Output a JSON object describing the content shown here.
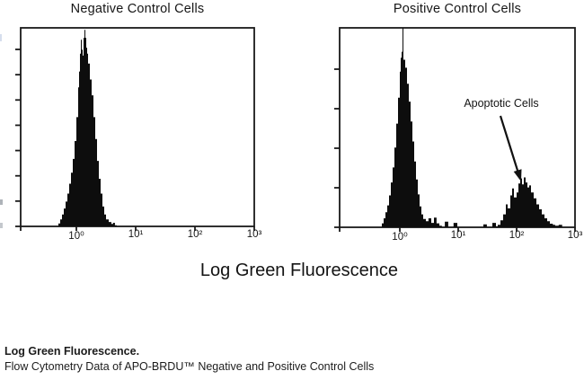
{
  "figure": {
    "x_axis_label": "Log Green Fluorescence"
  },
  "caption": {
    "bold_line": "Log Green Fluorescence.",
    "line2": "Flow Cytometry Data of APO-BRDU™ Negative and Positive Control Cells"
  },
  "colors": {
    "ink": "#1a1a1a",
    "histogram_fill": "#0d0d0d",
    "background": "#ffffff"
  },
  "chart_data": [
    {
      "type": "histogram",
      "title": "Negative Control Cells",
      "xlabel": "Log Green Fluorescence",
      "x_scale": "log10",
      "x_tick_labels": [
        "10⁰",
        "10¹",
        "10²",
        "10³"
      ],
      "x_tick_values": [
        1,
        10,
        100,
        1000
      ],
      "x_tick_decades": [
        0,
        1,
        2,
        3
      ],
      "x_range_decades": [
        -0.94,
        3
      ],
      "ylabel": "",
      "y_tick_count": 8,
      "grid": false,
      "legend": false,
      "description": "Single tall peak centered near 1.3 (10^0.14) reaching ~full scale; no events above 10^1",
      "series": [
        {
          "name": "Negative control cells",
          "points": [
            [
              -0.333,
              0
            ],
            [
              -0.303,
              0.015
            ],
            [
              -0.273,
              0.035
            ],
            [
              -0.242,
              0.06
            ],
            [
              -0.212,
              0.09
            ],
            [
              -0.182,
              0.125
            ],
            [
              -0.152,
              0.165
            ],
            [
              -0.121,
              0.215
            ],
            [
              -0.091,
              0.27
            ],
            [
              -0.061,
              0.34
            ],
            [
              -0.03,
              0.43
            ],
            [
              0,
              0.55
            ],
            [
              0.03,
              0.7
            ],
            [
              0.045,
              0.78
            ],
            [
              0.061,
              0.87
            ],
            [
              0.076,
              0.94
            ],
            [
              0.091,
              0.89
            ],
            [
              0.106,
              0.86
            ],
            [
              0.121,
              0.95
            ],
            [
              0.136,
              0.99
            ],
            [
              0.152,
              0.95
            ],
            [
              0.167,
              0.9
            ],
            [
              0.182,
              0.87
            ],
            [
              0.197,
              0.82
            ],
            [
              0.227,
              0.74
            ],
            [
              0.258,
              0.66
            ],
            [
              0.288,
              0.55
            ],
            [
              0.318,
              0.44
            ],
            [
              0.348,
              0.33
            ],
            [
              0.379,
              0.24
            ],
            [
              0.409,
              0.165
            ],
            [
              0.439,
              0.1
            ],
            [
              0.47,
              0.06
            ],
            [
              0.5,
              0.035
            ],
            [
              0.545,
              0.022
            ],
            [
              0.59,
              0.012
            ],
            [
              0.62,
              0.018
            ],
            [
              0.65,
              0.006
            ],
            [
              0.68,
              0
            ]
          ]
        }
      ]
    },
    {
      "type": "histogram",
      "title": "Positive Control Cells",
      "xlabel": "Log Green Fluorescence",
      "x_scale": "log10",
      "x_tick_labels": [
        "10⁰",
        "10¹",
        "10²",
        "10³"
      ],
      "x_tick_values": [
        1,
        10,
        100,
        1000
      ],
      "x_tick_decades": [
        0,
        1,
        2,
        3
      ],
      "x_range_decades": [
        -1.03,
        3
      ],
      "ylabel": "",
      "y_tick_count": 5,
      "grid": false,
      "legend": false,
      "annotation": {
        "text": "Apoptotic Cells",
        "points_to_log_x": 2.1,
        "points_to_height_frac": 0.25
      },
      "description": "Main peak at ~10^0 reaching full scale plus smaller apoptotic-cell peak centered near 10^2.1 at ~25% height",
      "series": [
        {
          "name": "Positive control cells",
          "points": [
            [
              -0.338,
              0
            ],
            [
              -0.308,
              0.02
            ],
            [
              -0.277,
              0.045
            ],
            [
              -0.246,
              0.075
            ],
            [
              -0.215,
              0.11
            ],
            [
              -0.185,
              0.16
            ],
            [
              -0.154,
              0.225
            ],
            [
              -0.123,
              0.3
            ],
            [
              -0.092,
              0.4
            ],
            [
              -0.062,
              0.52
            ],
            [
              -0.031,
              0.65
            ],
            [
              0,
              0.78
            ],
            [
              0.015,
              0.85
            ],
            [
              0.031,
              0.88
            ],
            [
              0.046,
              1
            ],
            [
              0.062,
              0.84
            ],
            [
              0.092,
              0.8
            ],
            [
              0.123,
              0.72
            ],
            [
              0.154,
              0.63
            ],
            [
              0.185,
              0.53
            ],
            [
              0.215,
              0.43
            ],
            [
              0.246,
              0.33
            ],
            [
              0.277,
              0.24
            ],
            [
              0.308,
              0.165
            ],
            [
              0.338,
              0.105
            ],
            [
              0.369,
              0.065
            ],
            [
              0.4,
              0.042
            ],
            [
              0.446,
              0.03
            ],
            [
              0.49,
              0.045
            ],
            [
              0.538,
              0.022
            ],
            [
              0.585,
              0.048
            ],
            [
              0.63,
              0.02
            ],
            [
              0.677,
              0.008
            ],
            [
              0.72,
              0
            ],
            [
              0.77,
              0.028
            ],
            [
              0.83,
              0
            ],
            [
              0.92,
              0.022
            ],
            [
              0.985,
              0
            ],
            [
              1.43,
              0.015
            ],
            [
              1.49,
              0
            ],
            [
              1.585,
              0.022
            ],
            [
              1.646,
              0.005
            ],
            [
              1.677,
              0.012
            ],
            [
              1.723,
              0.035
            ],
            [
              1.769,
              0.065
            ],
            [
              1.815,
              0.115
            ],
            [
              1.846,
              0.095
            ],
            [
              1.892,
              0.16
            ],
            [
              1.923,
              0.195
            ],
            [
              1.954,
              0.15
            ],
            [
              2,
              0.175
            ],
            [
              2.031,
              0.22
            ],
            [
              2.062,
              0.245
            ],
            [
              2.092,
              0.215
            ],
            [
              2.123,
              0.25
            ],
            [
              2.154,
              0.225
            ],
            [
              2.185,
              0.2
            ],
            [
              2.215,
              0.21
            ],
            [
              2.246,
              0.175
            ],
            [
              2.292,
              0.145
            ],
            [
              2.338,
              0.115
            ],
            [
              2.385,
              0.09
            ],
            [
              2.431,
              0.065
            ],
            [
              2.477,
              0.045
            ],
            [
              2.523,
              0.03
            ],
            [
              2.57,
              0.018
            ],
            [
              2.62,
              0.012
            ],
            [
              2.66,
              0.008
            ],
            [
              2.72,
              0.012
            ],
            [
              2.78,
              0
            ]
          ]
        }
      ]
    }
  ]
}
